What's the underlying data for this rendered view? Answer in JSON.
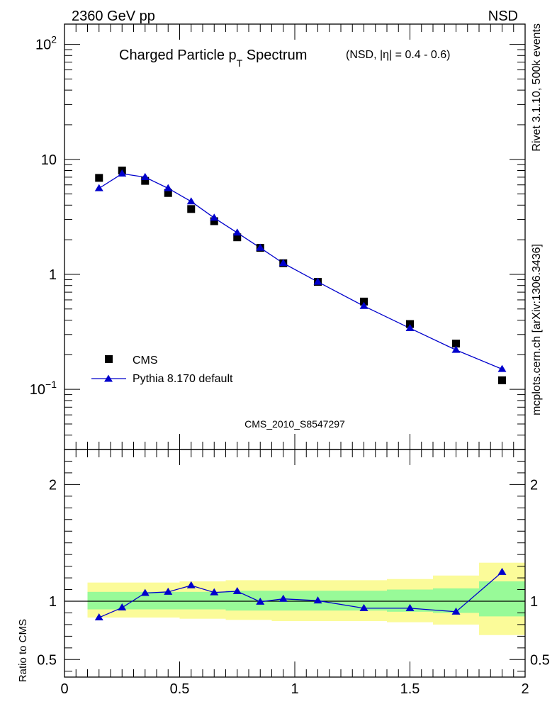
{
  "header": {
    "left_label": "2360 GeV pp",
    "right_label": "NSD"
  },
  "side_labels": {
    "rivet": "Rivet 3.1.10,  500k events",
    "mcplots": "mcplots.cern.ch [arXiv:1306.3436]"
  },
  "chart_data": [
    {
      "type": "scatter",
      "title_main": "Charged Particle p",
      "title_sub": "T",
      "title_tail": " Spectrum",
      "title_note": "(NSD, |η| = 0.4 - 0.6)",
      "watermark": "CMS_2010_S8547297",
      "yscale": "log",
      "xlim": [
        0,
        2
      ],
      "ylim": [
        0.03,
        150
      ],
      "y_ticks": [
        {
          "value": 100,
          "mant": "10",
          "exp": "2"
        },
        {
          "value": 10,
          "mant": "10",
          "exp": ""
        },
        {
          "value": 1,
          "mant": "1",
          "exp": ""
        },
        {
          "value": 0.1,
          "mant": "10",
          "exp": "−1"
        }
      ],
      "legend": {
        "position": "bottom-left",
        "entries": [
          "CMS",
          "Pythia 8.170 default"
        ]
      },
      "series": [
        {
          "name": "CMS",
          "marker": "square",
          "color": "#000000",
          "x": [
            0.15,
            0.25,
            0.35,
            0.45,
            0.55,
            0.65,
            0.75,
            0.85,
            0.95,
            1.1,
            1.3,
            1.5,
            1.7,
            1.9
          ],
          "y": [
            6.9,
            8.0,
            6.5,
            5.1,
            3.7,
            2.9,
            2.1,
            1.7,
            1.25,
            0.86,
            0.58,
            0.37,
            0.25,
            0.12
          ]
        },
        {
          "name": "Pythia 8.170 default",
          "marker": "triangle",
          "color": "#0000cc",
          "x": [
            0.15,
            0.25,
            0.35,
            0.45,
            0.55,
            0.65,
            0.75,
            0.85,
            0.95,
            1.1,
            1.3,
            1.5,
            1.7,
            1.9
          ],
          "y": [
            5.6,
            7.5,
            7.0,
            5.6,
            4.3,
            3.1,
            2.3,
            1.7,
            1.25,
            0.86,
            0.53,
            0.34,
            0.22,
            0.15
          ]
        }
      ]
    },
    {
      "type": "line",
      "ylabel": "Ratio to CMS",
      "xlim": [
        0,
        2
      ],
      "ylim": [
        0.35,
        2.3
      ],
      "x_ticks": [
        "0",
        "0.5",
        "1",
        "1.5",
        "2"
      ],
      "x_tick_values": [
        0,
        0.5,
        1,
        1.5,
        2
      ],
      "y_ticks": [
        "0.5",
        "1",
        "2"
      ],
      "y_tick_values": [
        0.5,
        1,
        2
      ],
      "reference": 1,
      "bands": [
        {
          "x0": 0.1,
          "x1": 0.2,
          "green": [
            0.93,
            1.08
          ],
          "yellow": [
            0.86,
            1.16
          ]
        },
        {
          "x0": 0.2,
          "x1": 0.3,
          "green": [
            0.93,
            1.08
          ],
          "yellow": [
            0.86,
            1.16
          ]
        },
        {
          "x0": 0.3,
          "x1": 0.4,
          "green": [
            0.93,
            1.08
          ],
          "yellow": [
            0.86,
            1.16
          ]
        },
        {
          "x0": 0.4,
          "x1": 0.5,
          "green": [
            0.93,
            1.08
          ],
          "yellow": [
            0.86,
            1.16
          ]
        },
        {
          "x0": 0.5,
          "x1": 0.6,
          "green": [
            0.93,
            1.08
          ],
          "yellow": [
            0.85,
            1.17
          ]
        },
        {
          "x0": 0.6,
          "x1": 0.7,
          "green": [
            0.93,
            1.08
          ],
          "yellow": [
            0.85,
            1.17
          ]
        },
        {
          "x0": 0.7,
          "x1": 0.8,
          "green": [
            0.92,
            1.09
          ],
          "yellow": [
            0.84,
            1.18
          ]
        },
        {
          "x0": 0.8,
          "x1": 0.9,
          "green": [
            0.92,
            1.09
          ],
          "yellow": [
            0.84,
            1.18
          ]
        },
        {
          "x0": 0.9,
          "x1": 1.0,
          "green": [
            0.92,
            1.09
          ],
          "yellow": [
            0.83,
            1.18
          ]
        },
        {
          "x0": 1.0,
          "x1": 1.2,
          "green": [
            0.92,
            1.09
          ],
          "yellow": [
            0.83,
            1.18
          ]
        },
        {
          "x0": 1.2,
          "x1": 1.4,
          "green": [
            0.92,
            1.09
          ],
          "yellow": [
            0.83,
            1.18
          ]
        },
        {
          "x0": 1.4,
          "x1": 1.6,
          "green": [
            0.91,
            1.1
          ],
          "yellow": [
            0.82,
            1.19
          ]
        },
        {
          "x0": 1.6,
          "x1": 1.8,
          "green": [
            0.9,
            1.11
          ],
          "yellow": [
            0.8,
            1.22
          ]
        },
        {
          "x0": 1.8,
          "x1": 2.0,
          "green": [
            0.87,
            1.17
          ],
          "yellow": [
            0.71,
            1.33
          ]
        }
      ],
      "series": [
        {
          "name": "Pythia 8.170 default / CMS",
          "marker": "triangle",
          "color": "#0000cc",
          "x": [
            0.15,
            0.25,
            0.35,
            0.45,
            0.55,
            0.65,
            0.75,
            0.85,
            0.95,
            1.1,
            1.3,
            1.5,
            1.7,
            1.9
          ],
          "y": [
            0.86,
            0.945,
            1.07,
            1.08,
            1.135,
            1.075,
            1.085,
            0.995,
            1.02,
            1.005,
            0.94,
            0.94,
            0.91,
            1.25
          ]
        }
      ]
    }
  ],
  "colors": {
    "band_green": "#98fa98",
    "band_yellow": "#fbfb99",
    "mc": "#0000cc",
    "data": "#000000",
    "watermark": "#8c8c8c"
  }
}
